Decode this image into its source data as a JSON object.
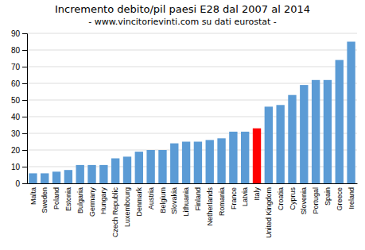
{
  "chart_data": {
    "type": "bar",
    "title": "Incremento debito/pil paesi E28 dal 2007 al 2014",
    "subtitle": "- www.vincitorievinti.com su dati eurostat -",
    "categories": [
      "Malta",
      "Sweden",
      "Poland",
      "Estonia",
      "Bulgaria",
      "Germany",
      "Hungary",
      "Czech Republic",
      "Luxembourg",
      "Denmark",
      "Austria",
      "Belgium",
      "Slovakia",
      "Lithuania",
      "Finland",
      "Netherlands",
      "Romania",
      "France",
      "Latvia",
      "Italy",
      "United Kingdom",
      "Croatia",
      "Cyprus",
      "Slovenia",
      "Portugal",
      "Spain",
      "Greece",
      "Ireland"
    ],
    "values": [
      6,
      6,
      7,
      8,
      11,
      11,
      11,
      15,
      16,
      19,
      20,
      20,
      24,
      25,
      25,
      26,
      27,
      31,
      31,
      33,
      46,
      47,
      53,
      59,
      62,
      62,
      74,
      85
    ],
    "colors": [
      "#5B9BD5",
      "#5B9BD5",
      "#5B9BD5",
      "#5B9BD5",
      "#5B9BD5",
      "#5B9BD5",
      "#5B9BD5",
      "#5B9BD5",
      "#5B9BD5",
      "#5B9BD5",
      "#5B9BD5",
      "#5B9BD5",
      "#5B9BD5",
      "#5B9BD5",
      "#5B9BD5",
      "#5B9BD5",
      "#5B9BD5",
      "#5B9BD5",
      "#5B9BD5",
      "#FF0000",
      "#5B9BD5",
      "#5B9BD5",
      "#5B9BD5",
      "#5B9BD5",
      "#5B9BD5",
      "#5B9BD5",
      "#5B9BD5",
      "#5B9BD5"
    ],
    "ylim": [
      0,
      90
    ],
    "yticks": [
      0,
      10,
      20,
      30,
      40,
      50,
      60,
      70,
      80,
      90
    ],
    "grid": true
  }
}
